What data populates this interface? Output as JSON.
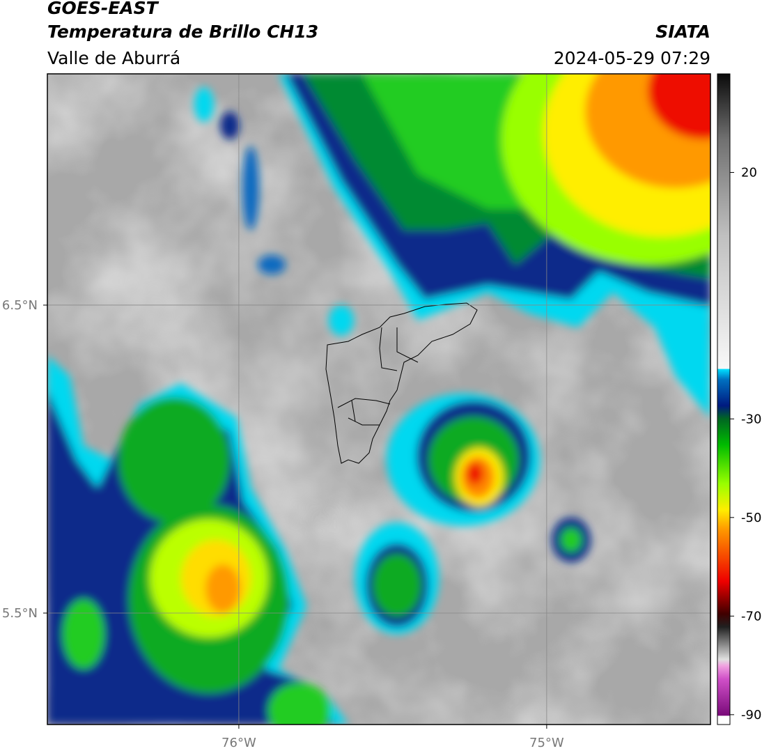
{
  "header": {
    "title": "GOES-EAST",
    "subtitle": "Temperatura de Brillo CH13",
    "region": "Valle de Aburrá",
    "source": "SIATA",
    "datetime": "2024-05-29 07:29"
  },
  "map": {
    "xlim": [
      -76.622,
      -74.468
    ],
    "ylim": [
      5.138,
      7.251
    ],
    "xticks": [
      {
        "value": -76,
        "label": "76°W"
      },
      {
        "value": -75,
        "label": "75°W"
      }
    ],
    "yticks": [
      {
        "value": 6.5,
        "label": "6.5°N"
      },
      {
        "value": 5.5,
        "label": "5.5°N"
      }
    ],
    "grid": true
  },
  "colorbar": {
    "lim": [
      -92,
      40
    ],
    "ticks": [
      20,
      -30,
      -50,
      -70,
      -90
    ]
  }
}
